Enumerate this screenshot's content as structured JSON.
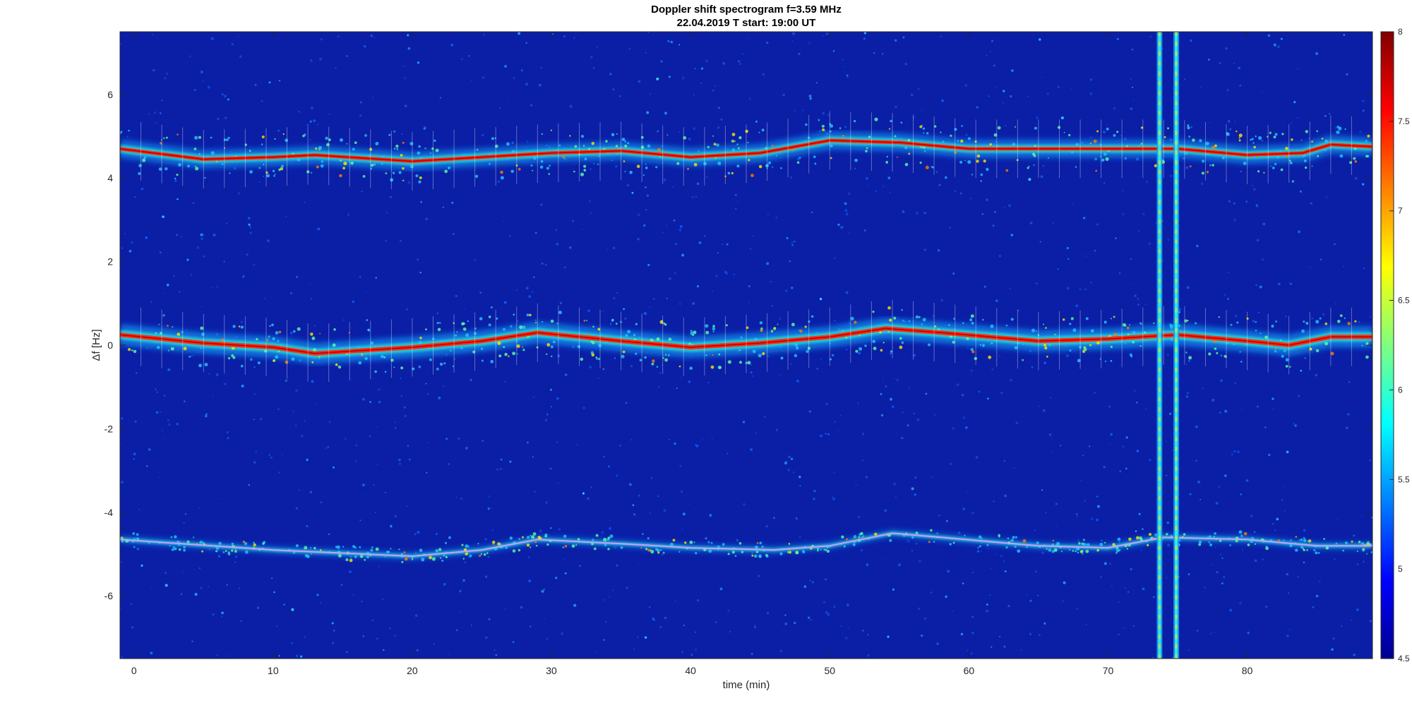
{
  "chart_data": {
    "type": "heatmap",
    "title": "Doppler shift spectrogram f=3.59 MHz",
    "subtitle": "22.04.2019   T start: 19:00 UT",
    "xlabel": "time (min)",
    "ylabel": "Δf [Hz]",
    "xlim": [
      -1,
      89
    ],
    "ylim": [
      -7.5,
      7.5
    ],
    "x_ticks": [
      0,
      10,
      20,
      30,
      40,
      50,
      60,
      70,
      80
    ],
    "y_ticks": [
      6,
      4,
      2,
      0,
      -2,
      -4,
      -6
    ],
    "colorbar": {
      "colormap": "jet",
      "range": [
        4.5,
        8
      ],
      "ticks": [
        8,
        7.5,
        7,
        6.5,
        6,
        5.5,
        5,
        4.5
      ]
    },
    "grid": false,
    "series": [
      {
        "x": [
          -1,
          5,
          10,
          13,
          20,
          25,
          30,
          35,
          40,
          45,
          50,
          55,
          60,
          65,
          70,
          75,
          80,
          84,
          86,
          89
        ],
        "y": [
          4.7,
          4.45,
          4.5,
          4.55,
          4.4,
          4.5,
          4.6,
          4.65,
          4.5,
          4.6,
          4.9,
          4.85,
          4.7,
          4.7,
          4.7,
          4.7,
          4.55,
          4.6,
          4.8,
          4.75
        ]
      },
      {
        "x": [
          -1,
          5,
          10,
          13,
          20,
          25,
          29,
          35,
          40,
          45,
          50,
          54,
          58,
          65,
          70,
          75,
          80,
          83,
          86,
          89
        ],
        "y": [
          0.25,
          0.05,
          -0.05,
          -0.2,
          -0.05,
          0.1,
          0.3,
          0.1,
          -0.05,
          0.05,
          0.2,
          0.4,
          0.3,
          0.1,
          0.15,
          0.25,
          0.1,
          0.0,
          0.2,
          0.2
        ]
      },
      {
        "x": [
          -1,
          10,
          20,
          25,
          29,
          35,
          40,
          46,
          50,
          54.5,
          58,
          65,
          70,
          74,
          80,
          85,
          89
        ],
        "y": [
          -4.65,
          -4.9,
          -5.05,
          -4.9,
          -4.65,
          -4.75,
          -4.85,
          -4.9,
          -4.8,
          -4.5,
          -4.6,
          -4.8,
          -4.85,
          -4.6,
          -4.65,
          -4.8,
          -4.8
        ]
      }
    ],
    "interference_times": [
      73.7,
      74.9
    ]
  }
}
